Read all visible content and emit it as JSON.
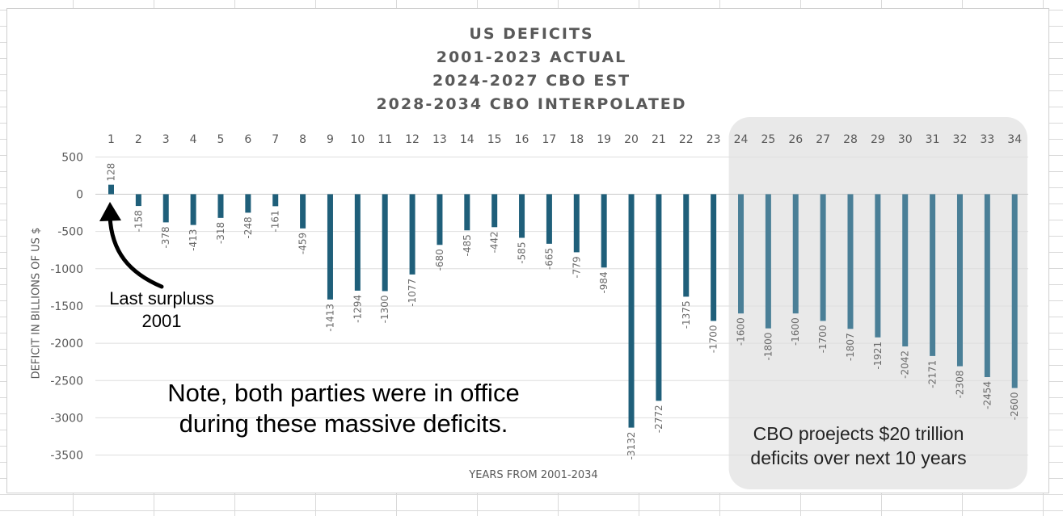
{
  "chart_data": {
    "type": "bar",
    "title_lines": [
      "US DEFICITS",
      "2001-2023 ACTUAL",
      "2024-2027 CBO EST",
      "2028-2034 CBO INTERPOLATED"
    ],
    "xlabel": "YEARS FROM 2001-2034",
    "ylabel": "DEFICIT IN BILLIONS OF US $",
    "ylim": [
      -3500,
      500
    ],
    "yticks": [
      500,
      0,
      -500,
      -1000,
      -1500,
      -2000,
      -2500,
      -3000,
      -3500
    ],
    "grid": true,
    "categories": [
      "1",
      "2",
      "3",
      "4",
      "5",
      "6",
      "7",
      "8",
      "9",
      "10",
      "11",
      "12",
      "13",
      "14",
      "15",
      "16",
      "17",
      "18",
      "19",
      "20",
      "21",
      "22",
      "23",
      "24",
      "25",
      "26",
      "27",
      "28",
      "29",
      "30",
      "31",
      "32",
      "33",
      "34"
    ],
    "values": [
      128,
      -158,
      -378,
      -413,
      -318,
      -248,
      -161,
      -459,
      -1413,
      -1294,
      -1300,
      -1077,
      -680,
      -485,
      -442,
      -585,
      -665,
      -779,
      -984,
      -3132,
      -2772,
      -1375,
      -1700,
      -1600,
      -1800,
      -1600,
      -1700,
      -1807,
      -1921,
      -2042,
      -2171,
      -2308,
      -2454,
      -2600
    ],
    "data_labels": [
      "128",
      "-158",
      "-378",
      "-413",
      "-318",
      "-248",
      "-161",
      "-459",
      "-1413",
      "-1294",
      "-1300",
      "-1077",
      "-680",
      "-485",
      "-442",
      "-585",
      "-665",
      "-779",
      "-984",
      "-3132",
      "-2772",
      "-1375",
      "-1700",
      "-1600",
      "-1800",
      "-1600",
      "-1700",
      "-1807",
      "-1921",
      "-2042",
      "-2171",
      "-2308",
      "-2454",
      "-2600"
    ],
    "actual_color": "#1f5f7a",
    "projected_color": "#4a7f97",
    "projected_from_category": "24",
    "projection_region_color": "#e9e9e9",
    "annotations": {
      "last_surplus": "Last surpluss\n2001",
      "note": "Note, both parties were in office\nduring these massive deficits.",
      "cbo": "CBO proejects $20 trillion\ndeficits over next 10 years"
    }
  }
}
